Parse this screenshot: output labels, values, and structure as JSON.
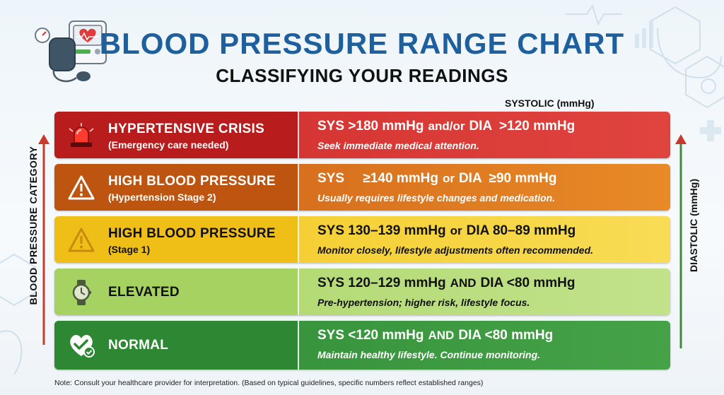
{
  "header": {
    "title": "BLOOD PRESSURE RANGE CHART",
    "subtitle": "CLASSIFYING YOUR READINGS"
  },
  "axes": {
    "left_label": "BLOOD PRESSURE CATEGORY",
    "right_label": "DIASTOLIC (mmHg)",
    "top_label": "SYSTOLIC (mmHg)"
  },
  "colors": {
    "title_blue": "#1e5f9e",
    "crisis_red": "#d63633",
    "stage2_orange": "#d8701e",
    "stage1_yellow": "#f6d23a",
    "elevated_green": "#b7dc7a",
    "normal_green": "#3a973f"
  },
  "rows": [
    {
      "icon": "siren-icon",
      "category": "HYPERTENSIVE CRISIS",
      "category_sub": "(Emergency care needed)",
      "sys": "SYS >180 mmHg",
      "conj": "and/or",
      "dia": "DIA  >120 mmHg",
      "advice": "Seek immediate medical attention."
    },
    {
      "icon": "warning-icon",
      "category": "HIGH BLOOD PRESSURE",
      "category_sub": "(Hypertension Stage 2)",
      "sys": "SYS     ≥140 mmHg",
      "conj": "or",
      "dia": "DIA  ≥90 mmHg",
      "advice": "Usually requires lifestyle changes and medication."
    },
    {
      "icon": "warning-icon",
      "category": "HIGH BLOOD PRESSURE",
      "category_sub": "(Stage 1)",
      "sys": "SYS 130–139 mmHg",
      "conj": "or",
      "dia": "DIA 80–89 mmHg",
      "advice": "Monitor closely, lifestyle adjustments often recommended."
    },
    {
      "icon": "watch-icon",
      "category": "ELEVATED",
      "category_sub": "",
      "sys": "SYS 120–129 mmHg",
      "conj": "AND",
      "dia": "DIA <80 mmHg",
      "advice": "Pre-hypertension; higher risk, lifestyle focus."
    },
    {
      "icon": "heart-check-icon",
      "category": "NORMAL",
      "category_sub": "",
      "sys": "SYS <120 mmHg",
      "conj": "AND",
      "dia": "DIA <80 mmHg",
      "advice": "Maintain healthy lifestyle. Continue monitoring."
    }
  ],
  "footnote": "Note: Consult your healthcare provider for interpretation. (Based on typical guidelines, specific numbers reflect established ranges)"
}
